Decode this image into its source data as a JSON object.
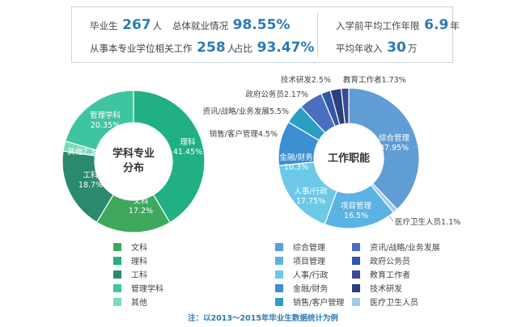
{
  "stats": {
    "graduates_label": "毕业生",
    "graduates_value": "267",
    "graduates_unit": "人",
    "employment_label": "总体就业情况",
    "employment_value": "98.55%",
    "related_label": "从事本专业学位相关工作",
    "related_value": "258",
    "related_unit": "人",
    "ratio_label": "占比",
    "ratio_value": "93.47%",
    "work_years_label": "入学前平均工作年限",
    "work_years_value": "6.9",
    "work_years_unit": "年",
    "income_label": "平均年收入",
    "income_value": "30",
    "income_unit": "万"
  },
  "chart_data": [
    {
      "type": "pie",
      "title": "学科专业分布",
      "slices": [
        {
          "name": "理科",
          "value": 41.45,
          "label": "41.45%",
          "color": "#20b083"
        },
        {
          "name": "文科",
          "value": 17.2,
          "label": "17.2%",
          "color": "#3ea85c"
        },
        {
          "name": "工科",
          "value": 18.7,
          "label": "18.7%",
          "color": "#2a8a6e"
        },
        {
          "name": "其他",
          "value": 2.3,
          "label": "2.3%",
          "color": "#7dd9bb"
        },
        {
          "name": "管理学科",
          "value": 20.35,
          "label": "20.35%",
          "color": "#3fc4a1"
        }
      ]
    },
    {
      "type": "pie",
      "title": "工作职能",
      "slices": [
        {
          "name": "综合管理",
          "value": 37.95,
          "label": "37.95%",
          "color": "#5f9dd4"
        },
        {
          "name": "医疗卫生人员",
          "value": 1.1,
          "label": "1.1%",
          "color": "#a3c8ea"
        },
        {
          "name": "项目管理",
          "value": 16.5,
          "label": "16.5%",
          "color": "#5bb3e3"
        },
        {
          "name": "人事/行政",
          "value": 17.75,
          "label": "17.75%",
          "color": "#6cc9e8"
        },
        {
          "name": "金融/财务",
          "value": 10.3,
          "label": "10.3%",
          "color": "#3c8fd0"
        },
        {
          "name": "销售/客户管理",
          "value": 4.5,
          "label": "4.5%",
          "color": "#2a9fc6"
        },
        {
          "name": "资讯/战略/业务发展",
          "value": 5.5,
          "label": "5.5%",
          "color": "#4a6fc0"
        },
        {
          "name": "政府公务员",
          "value": 2.17,
          "label": "2.17%",
          "color": "#2f5aa8"
        },
        {
          "name": "技术研发",
          "value": 2.5,
          "label": "2.5%",
          "color": "#2b3f7e"
        },
        {
          "name": "教育工作者",
          "value": 1.73,
          "label": "1.73%",
          "color": "#3a4a94"
        }
      ]
    }
  ],
  "legend_left": [
    {
      "label": "文科",
      "color": "#3ea85c"
    },
    {
      "label": "理科",
      "color": "#20b083"
    },
    {
      "label": "工科",
      "color": "#2a8a6e"
    },
    {
      "label": "管理学科",
      "color": "#3fc4a1"
    },
    {
      "label": "其他",
      "color": "#7dd9bb"
    }
  ],
  "legend_right_col1": [
    {
      "label": "综合管理",
      "color": "#5f9dd4"
    },
    {
      "label": "项目管理",
      "color": "#5bb3e3"
    },
    {
      "label": "人事/行政",
      "color": "#6cc9e8"
    },
    {
      "label": "金融/财务",
      "color": "#3c8fd0"
    },
    {
      "label": "销售/客户管理",
      "color": "#2a9fc6"
    }
  ],
  "legend_right_col2": [
    {
      "label": "资讯/战略/业务发展",
      "color": "#4a6fc0"
    },
    {
      "label": "政府公务员",
      "color": "#2f5aa8"
    },
    {
      "label": "教育工作者",
      "color": "#3a4a94"
    },
    {
      "label": "技术研发",
      "color": "#2b3f7e"
    },
    {
      "label": "医疗卫生人员",
      "color": "#a3c8ea"
    }
  ],
  "note": "注：以2013～2015年毕业生数据统计为例"
}
